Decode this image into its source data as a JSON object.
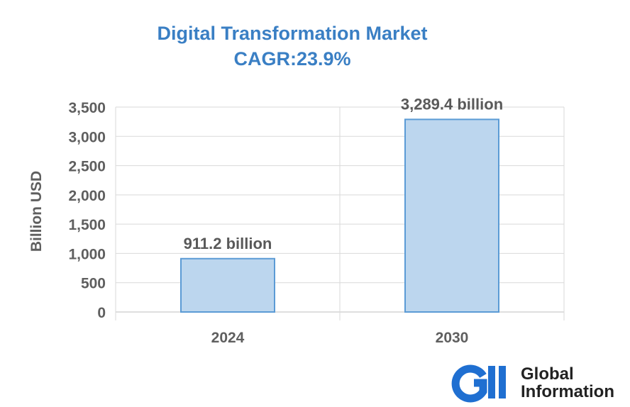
{
  "chart_data": {
    "type": "bar",
    "title": "Digital Transformation Market",
    "subtitle": "CAGR:23.9%",
    "ylabel": "Billion USD",
    "xlabel": "",
    "categories": [
      "2024",
      "2030"
    ],
    "values": [
      911.2,
      3289.4
    ],
    "data_labels": [
      "911.2 billion",
      "3,289.4 billion"
    ],
    "ylim": [
      0,
      3500
    ],
    "yticks": [
      0,
      500,
      1000,
      1500,
      2000,
      2500,
      3000,
      3500
    ],
    "ytick_labels": [
      "0",
      "500",
      "1,000",
      "1,500",
      "2,000",
      "2,500",
      "3,000",
      "3,500"
    ],
    "grid": true,
    "legend": "none",
    "colors": {
      "title": "#3a7fc4",
      "bar_fill": "#bcd6ee",
      "bar_stroke": "#5b9bd5",
      "grid": "#d9d9d9",
      "text": "#5f5f5f"
    }
  },
  "logo": {
    "icon": "gii-logo-icon",
    "line1": "Global",
    "line2": "Information",
    "colors": {
      "mark": "#1f6fd1",
      "text": "#222222"
    }
  }
}
